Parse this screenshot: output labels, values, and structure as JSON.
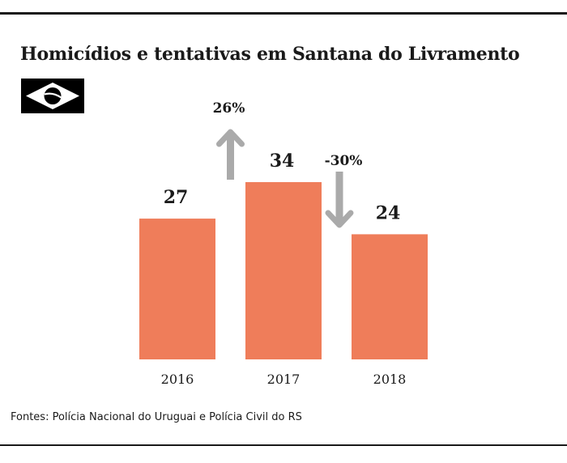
{
  "header": {
    "title": "Homicídios e tentativas em Santana do Livramento"
  },
  "flag": {
    "icon": "brazil-flag-icon"
  },
  "chart_data": {
    "type": "bar",
    "title": "Homicídios e tentativas em Santana do Livramento",
    "categories": [
      "2016",
      "2017",
      "2018"
    ],
    "values": [
      27,
      34,
      24
    ],
    "ylim": [
      0,
      34
    ],
    "bar_color": "#ef7d5a",
    "changes": [
      {
        "from": "2016",
        "to": "2017",
        "label": "26%",
        "direction": "up"
      },
      {
        "from": "2017",
        "to": "2018",
        "label": "-30%",
        "direction": "down"
      }
    ],
    "arrow_color": "#aaaaaa"
  },
  "footer": {
    "source": "Fontes: Polícia Nacional do Uruguai e Polícia Civil do RS"
  }
}
